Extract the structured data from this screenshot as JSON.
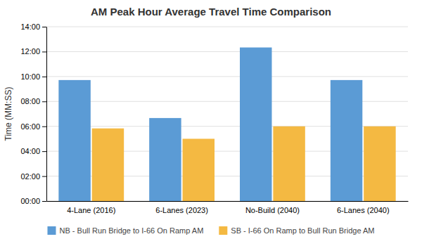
{
  "chart_data": {
    "type": "bar",
    "title": "AM Peak Hour Average Travel Time Comparison",
    "categories": [
      "4-Lane (2016)",
      "6-Lanes (2023)",
      "No-Build (2040)",
      "6-Lanes (2040)"
    ],
    "series": [
      {
        "name": "NB - Bull Run Bridge to I-66 On Ramp AM",
        "color": "#5B9BD5",
        "values": [
          583,
          400,
          740,
          583
        ]
      },
      {
        "name": "SB - I-66 On Ramp to Bull Run Bridge AM",
        "color": "#F4B942",
        "values": [
          350,
          300,
          360,
          360
        ]
      }
    ],
    "ylabel": "Time (MM:SS)",
    "ylim": [
      0,
      840
    ],
    "yticks": [
      {
        "value": 0,
        "label": "00:00"
      },
      {
        "value": 120,
        "label": "02:00"
      },
      {
        "value": 240,
        "label": "04:00"
      },
      {
        "value": 360,
        "label": "06:00"
      },
      {
        "value": 480,
        "label": "08:00"
      },
      {
        "value": 600,
        "label": "10:00"
      },
      {
        "value": 720,
        "label": "12:00"
      },
      {
        "value": 840,
        "label": "14:00"
      }
    ],
    "grid": true,
    "legend": "bottom"
  }
}
